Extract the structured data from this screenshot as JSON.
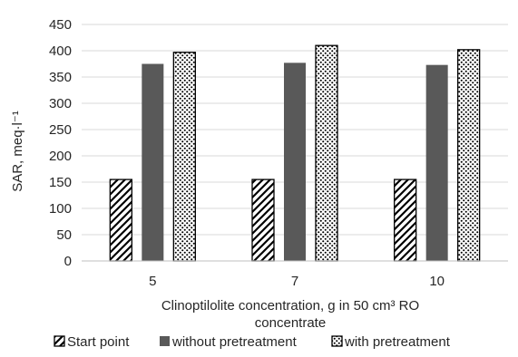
{
  "chart_data": {
    "type": "bar",
    "categories": [
      "5",
      "7",
      "10"
    ],
    "series": [
      {
        "name": "Start point",
        "values": [
          155,
          155,
          155
        ],
        "pattern": "diagonal-hatch"
      },
      {
        "name": "without pretreatment",
        "values": [
          375,
          377,
          373
        ],
        "pattern": "solid",
        "color": "#595959"
      },
      {
        "name": "with pretreatment",
        "values": [
          397,
          410,
          402
        ],
        "pattern": "dots"
      }
    ],
    "title": "",
    "xlabel_lines": [
      "Clinoptilolite concentration, g in 50 cm³ RO",
      "concentrate"
    ],
    "ylabel": "SAR, meq·l⁻¹",
    "ylim": [
      0,
      450
    ],
    "yticks": [
      0,
      50,
      100,
      150,
      200,
      250,
      300,
      350,
      400,
      450
    ],
    "grid": "horizontal",
    "legend_position": "bottom"
  }
}
